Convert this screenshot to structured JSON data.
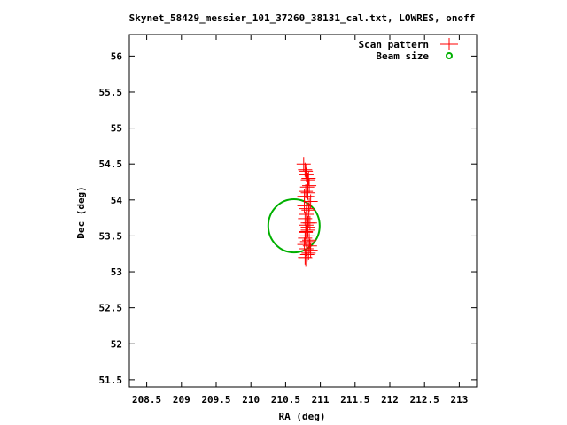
{
  "chart_data": {
    "type": "scatter",
    "title": "Skynet_58429_messier_101_37260_38131_cal.txt, LOWRES, onoff",
    "xlabel": "RA (deg)",
    "ylabel": "Dec (deg)",
    "xlim": [
      208.25,
      213.25
    ],
    "ylim": [
      51.4,
      56.3
    ],
    "xticks": [
      "208.5",
      "209",
      "209.5",
      "210",
      "210.5",
      "211",
      "211.5",
      "212",
      "212.5",
      "213"
    ],
    "yticks": [
      "51.5",
      "52",
      "52.5",
      "53",
      "53.5",
      "54",
      "54.5",
      "55",
      "55.5",
      "56"
    ],
    "legend_position": "top-right",
    "grid": false,
    "series": [
      {
        "name": "Scan pattern",
        "color": "#ff0000",
        "marker": "plus",
        "x": [
          210.76,
          210.78,
          210.8,
          210.82,
          210.84,
          210.79,
          210.81,
          210.86,
          210.77,
          210.83,
          210.8,
          210.78,
          210.85,
          210.82,
          210.79,
          210.81,
          210.84,
          210.77,
          210.8,
          210.83,
          210.78,
          210.86,
          210.81,
          210.79,
          210.82,
          210.8,
          210.84,
          210.77,
          210.81,
          210.83,
          210.79,
          210.8,
          210.82,
          210.78,
          210.85,
          210.81,
          210.79,
          210.83,
          210.8,
          210.82
        ],
        "y": [
          54.5,
          54.42,
          54.35,
          54.28,
          54.2,
          54.12,
          54.05,
          53.98,
          53.92,
          53.86,
          53.8,
          53.74,
          53.68,
          53.62,
          53.56,
          53.5,
          53.44,
          53.38,
          53.32,
          53.26,
          53.2,
          53.3,
          53.42,
          53.55,
          53.68,
          53.8,
          53.93,
          54.05,
          54.18,
          54.3,
          54.4,
          53.65,
          53.58,
          53.47,
          53.36,
          53.24,
          53.18,
          53.72,
          53.88,
          54.1
        ]
      },
      {
        "name": "Beam size",
        "color": "#00b000",
        "marker": "circle",
        "center": [
          210.62,
          53.64
        ],
        "radius_deg": 0.37
      }
    ]
  }
}
